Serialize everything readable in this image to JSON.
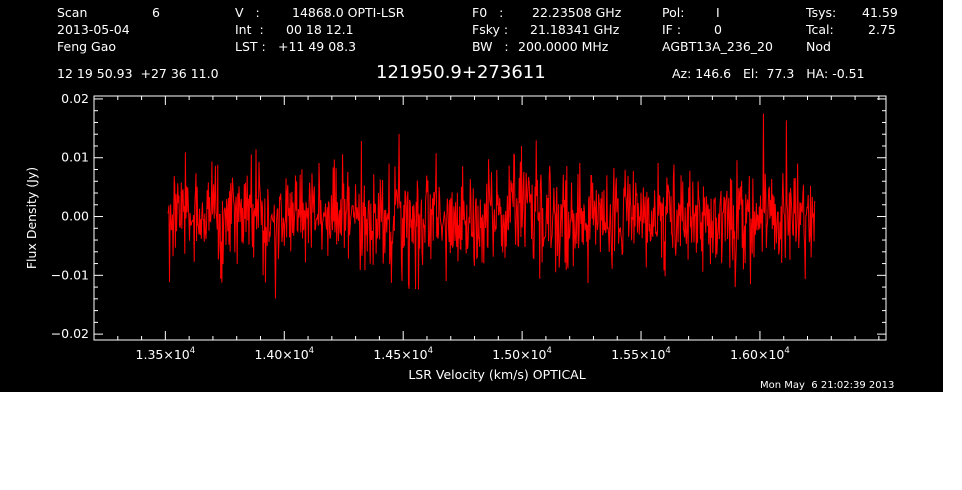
{
  "header": {
    "scan_label": "Scan",
    "scan_value": "6",
    "date": "2013-05-04",
    "observer": "Feng Gao",
    "v_label": "V   :",
    "v_value": "14868.0 OPTI-LSR",
    "int_label": "Int  :",
    "int_value": "00 18 12.1",
    "lst_label": "LST :",
    "lst_value": "+11 49 08.3",
    "f0_label": "F0   :",
    "f0_value": "22.23508 GHz",
    "fsky_label": "Fsky :",
    "fsky_value": "21.18341 GHz",
    "bw_label": "BW   :",
    "bw_value": "200.0000 MHz",
    "pol_label": "Pol:",
    "pol_value": "I",
    "if_label": "IF :",
    "if_value": "0",
    "project": "AGBT13A_236_20",
    "tsys_label": "Tsys:",
    "tsys_value": "41.59",
    "tcal_label": "Tcal:",
    "tcal_value": "2.75",
    "proc": "Nod",
    "coords": "12 19 50.93  +27 36 11.0",
    "source": "121950.9+273611",
    "az_el_ha": "Az: 146.6   El:  77.3   HA: -0.51"
  },
  "footer": {
    "timestamp": "Mon May  6 21:02:39 2013"
  },
  "chart_data": {
    "type": "line",
    "xlabel": "LSR Velocity (km/s) OPTICAL",
    "ylabel": "Flux Density (Jy)",
    "xlim": [
      13200,
      16530
    ],
    "ylim": [
      -0.021,
      0.0205
    ],
    "x_ticks": [
      13500,
      14000,
      14500,
      15000,
      15500,
      16000
    ],
    "x_tick_labels": [
      {
        "mant": "1.35×10",
        "exp": "4"
      },
      {
        "mant": "1.40×10",
        "exp": "4"
      },
      {
        "mant": "1.45×10",
        "exp": "4"
      },
      {
        "mant": "1.50×10",
        "exp": "4"
      },
      {
        "mant": "1.55×10",
        "exp": "4"
      },
      {
        "mant": "1.60×10",
        "exp": "4"
      }
    ],
    "y_ticks": [
      -0.02,
      -0.01,
      0.0,
      0.01,
      0.02
    ],
    "y_tick_labels": [
      "−0.02",
      "−0.01",
      "0.00",
      "0.01",
      "0.02"
    ],
    "series_color": "#ff0000",
    "series": [
      {
        "x_start": 13510,
        "x_end": 16230,
        "baseline": [
          [
            13510,
            0.0
          ],
          [
            13700,
            0.0005
          ],
          [
            13900,
            -0.0008
          ],
          [
            14100,
            0.001
          ],
          [
            14300,
            -0.0006
          ],
          [
            14500,
            -0.0008
          ],
          [
            14700,
            -0.0012
          ],
          [
            14900,
            0.0007
          ],
          [
            15100,
            0.0003
          ],
          [
            15300,
            0.0008
          ],
          [
            15500,
            0.0006
          ],
          [
            15700,
            0.0002
          ],
          [
            15900,
            -0.0005
          ],
          [
            16100,
            0.0005
          ],
          [
            16230,
            0.0006
          ]
        ],
        "rms": 0.0045,
        "n_points": 1100
      }
    ]
  }
}
